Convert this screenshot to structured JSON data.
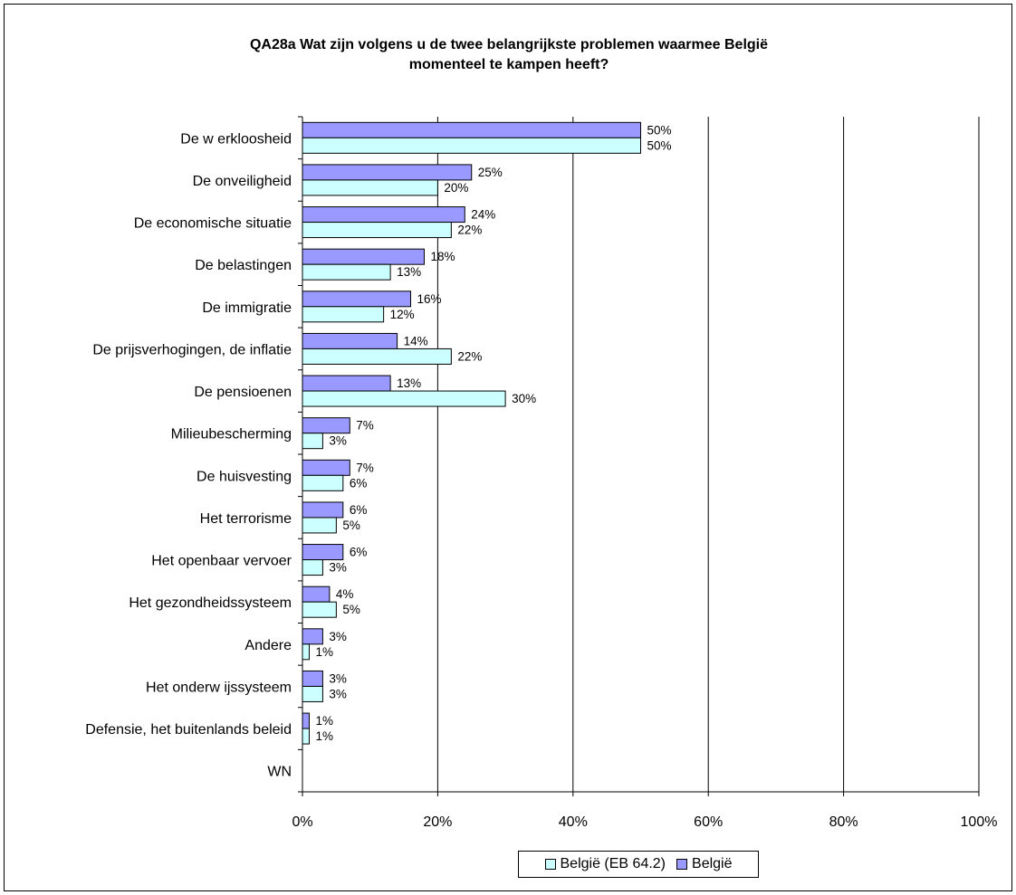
{
  "chart_data": {
    "type": "bar",
    "orientation": "horizontal",
    "title_lines": [
      "QA28a Wat zijn volgens u de twee belangrijkste problemen waarmee België",
      "momenteel te kampen heeft?"
    ],
    "categories": [
      "De w erkloosheid",
      "De onveiligheid",
      "De economische situatie",
      "De belastingen",
      "De immigratie",
      "De prijsverhogingen, de inflatie",
      "De pensioenen",
      "Milieubescherming",
      "De huisvesting",
      "Het terrorisme",
      "Het openbaar vervoer",
      "Het gezondheidssysteem",
      "Andere",
      "Het onderw ijssysteem",
      "Defensie, het buitenlands beleid",
      "WN"
    ],
    "series": [
      {
        "name": "België",
        "color": "#9999ff",
        "values": [
          50,
          25,
          24,
          18,
          16,
          14,
          13,
          7,
          7,
          6,
          6,
          4,
          3,
          3,
          1,
          null
        ],
        "labels": [
          "50%",
          "25%",
          "24%",
          "18%",
          "16%",
          "14%",
          "13%",
          "7%",
          "7%",
          "6%",
          "6%",
          "4%",
          "3%",
          "3%",
          "1%",
          ""
        ]
      },
      {
        "name": "België (EB 64.2)",
        "color": "#ccffff",
        "values": [
          50,
          20,
          22,
          13,
          12,
          22,
          30,
          3,
          6,
          5,
          3,
          5,
          1,
          3,
          1,
          null
        ],
        "labels": [
          "50%",
          "20%",
          "22%",
          "13%",
          "12%",
          "22%",
          "30%",
          "3%",
          "6%",
          "5%",
          "3%",
          "5%",
          "1%",
          "3%",
          "1%",
          ""
        ]
      }
    ],
    "xlim": [
      0,
      100
    ],
    "x_ticks": [
      "0%",
      "20%",
      "40%",
      "60%",
      "80%",
      "100%"
    ],
    "grid": "vertical",
    "legend": {
      "position": "bottom",
      "entries": [
        "België (EB 64.2)",
        "België"
      ]
    }
  }
}
